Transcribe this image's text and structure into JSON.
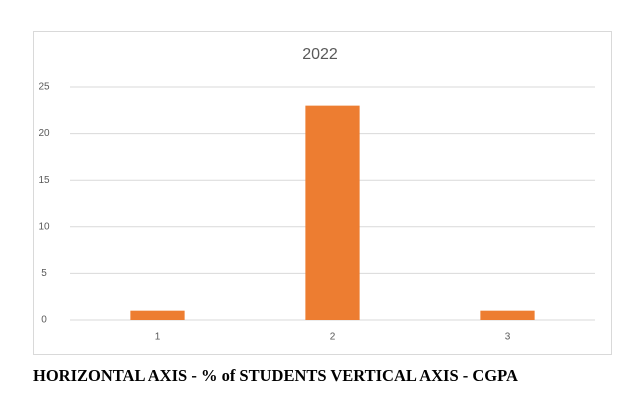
{
  "chart_data": {
    "type": "bar",
    "title": "2022",
    "categories": [
      "1",
      "2",
      "3"
    ],
    "values": [
      1,
      23,
      1
    ],
    "color": "#ed7d31",
    "ylim": [
      0,
      25
    ],
    "yticks": [
      0,
      5,
      10,
      15,
      20,
      25
    ],
    "grid": true
  },
  "caption": "HORIZONTAL AXIS - % of STUDENTS VERTICAL AXIS - CGPA"
}
